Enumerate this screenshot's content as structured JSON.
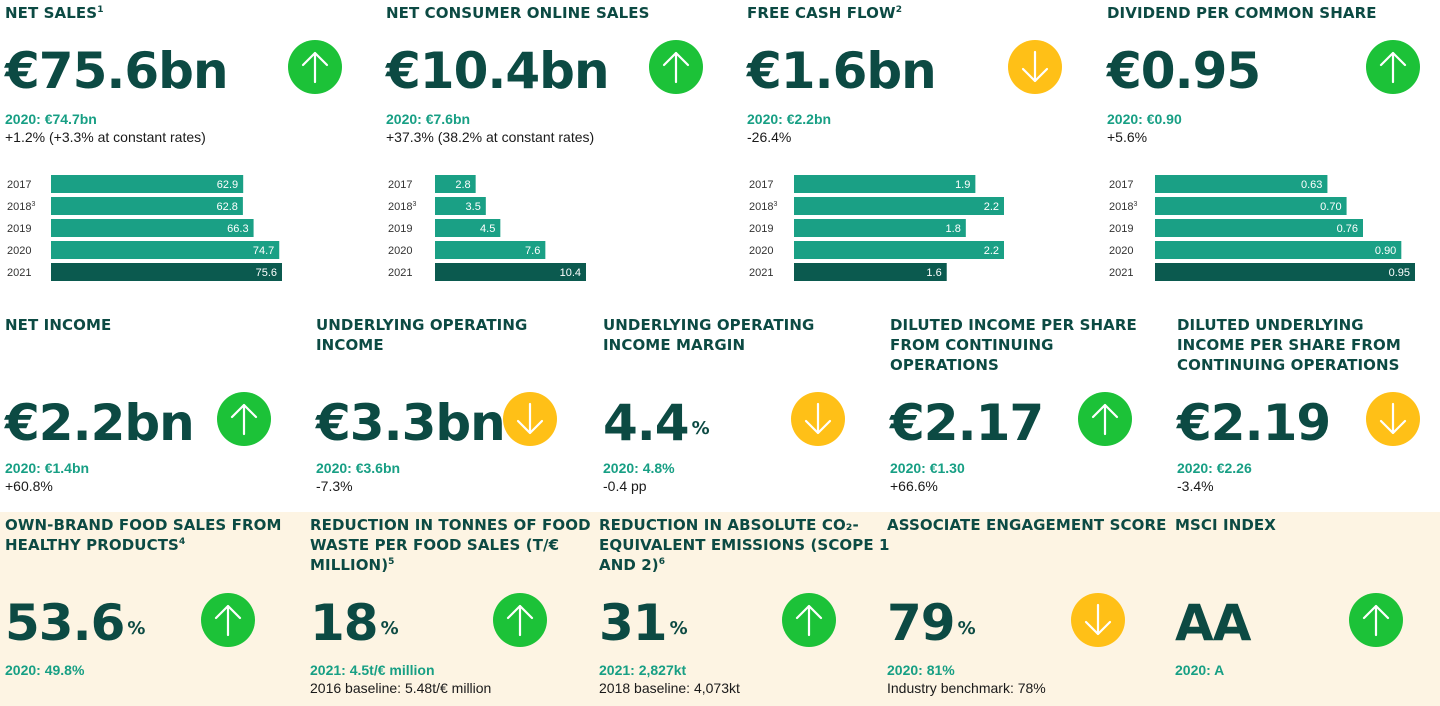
{
  "colors": {
    "title": "#0c4a43",
    "prior": "#179f84",
    "bar": "#1aa085",
    "bar_current": "#0b5a4f",
    "up": "#1cc238",
    "down": "#ffc017",
    "band": "#fdf4e3"
  },
  "row1": [
    {
      "title": "NET SALES",
      "note": "1",
      "value": "€75.6bn",
      "trend": "up",
      "prior": "2020: €74.7bn",
      "change": "+1.2% (+3.3% at constant rates)",
      "chart_data": {
        "type": "bar",
        "categories": [
          "2017",
          "2018",
          "2019",
          "2020",
          "2021"
        ],
        "category_notes": [
          "",
          "3",
          "",
          "",
          ""
        ],
        "values": [
          62.9,
          62.8,
          66.3,
          74.7,
          75.6
        ],
        "labels": [
          "62.9",
          "62.8",
          "66.3",
          "74.7",
          "75.6"
        ],
        "xlim": [
          0,
          75.6
        ]
      }
    },
    {
      "title": "NET CONSUMER ONLINE SALES",
      "note": "",
      "value": "€10.4bn",
      "trend": "up",
      "prior": "2020: €7.6bn",
      "change": "+37.3% (38.2% at constant rates)",
      "chart_data": {
        "type": "bar",
        "categories": [
          "2017",
          "2018",
          "2019",
          "2020",
          "2021"
        ],
        "category_notes": [
          "",
          "3",
          "",
          "",
          ""
        ],
        "values": [
          2.8,
          3.5,
          4.5,
          7.6,
          10.4
        ],
        "labels": [
          "2.8",
          "3.5",
          "4.5",
          "7.6",
          "10.4"
        ],
        "xlim": [
          0,
          10.4
        ]
      }
    },
    {
      "title": "FREE CASH FLOW",
      "note": "2",
      "value": "€1.6bn",
      "trend": "down",
      "prior": "2020: €2.2bn",
      "change": "-26.4%",
      "chart_data": {
        "type": "bar",
        "categories": [
          "2017",
          "2018",
          "2019",
          "2020",
          "2021"
        ],
        "category_notes": [
          "",
          "3",
          "",
          "",
          ""
        ],
        "values": [
          1.9,
          2.2,
          1.8,
          2.2,
          1.6
        ],
        "labels": [
          "1.9",
          "2.2",
          "1.8",
          "2.2",
          "1.6"
        ],
        "xlim": [
          0,
          2.2
        ]
      }
    },
    {
      "title": "DIVIDEND PER COMMON SHARE",
      "note": "",
      "value": "€0.95",
      "trend": "up",
      "prior": "2020: €0.90",
      "change": "+5.6%",
      "chart_data": {
        "type": "bar",
        "categories": [
          "2017",
          "2018",
          "2019",
          "2020",
          "2021"
        ],
        "category_notes": [
          "",
          "3",
          "",
          "",
          ""
        ],
        "values": [
          0.63,
          0.7,
          0.76,
          0.9,
          0.95
        ],
        "labels": [
          "0.63",
          "0.70",
          "0.76",
          "0.90",
          "0.95"
        ],
        "xlim": [
          0,
          0.95
        ]
      }
    }
  ],
  "row2": [
    {
      "title": [
        "NET INCOME"
      ],
      "note": "",
      "value": "€2.2bn",
      "unit": "",
      "trend": "up",
      "prior": "2020: €1.4bn",
      "change": "+60.8%"
    },
    {
      "title": [
        "UNDERLYING OPERATING",
        "INCOME"
      ],
      "note": "",
      "value": "€3.3bn",
      "unit": "",
      "trend": "down",
      "prior": "2020: €3.6bn",
      "change": "-7.3%"
    },
    {
      "title": [
        "UNDERLYING OPERATING",
        "INCOME MARGIN"
      ],
      "note": "",
      "value": "4.4",
      "unit": "%",
      "trend": "down",
      "prior": "2020: 4.8%",
      "change": "-0.4 pp"
    },
    {
      "title": [
        "DILUTED INCOME PER SHARE",
        "FROM CONTINUING",
        "OPERATIONS"
      ],
      "note": "",
      "value": "€2.17",
      "unit": "",
      "trend": "up",
      "prior": "2020: €1.30",
      "change": "+66.6%"
    },
    {
      "title": [
        "DILUTED UNDERLYING",
        "INCOME PER SHARE FROM",
        "CONTINUING OPERATIONS"
      ],
      "note": "",
      "value": "€2.19",
      "unit": "",
      "trend": "down",
      "prior": "2020: €2.26",
      "change": "-3.4%"
    }
  ],
  "row3": [
    {
      "title": [
        "OWN-BRAND FOOD SALES FROM",
        "HEALTHY PRODUCTS"
      ],
      "note": "4",
      "value": "53.6",
      "unit": "%",
      "trend": "up",
      "prior": "2020: 49.8%",
      "change": ""
    },
    {
      "title": [
        "REDUCTION IN TONNES OF FOOD",
        "WASTE PER FOOD SALES (T/€",
        "MILLION)"
      ],
      "note": "5",
      "value": "18",
      "unit": "%",
      "trend": "up",
      "prior": "2021: 4.5t/€ million",
      "change": "2016 baseline: 5.48t/€ million"
    },
    {
      "title": [
        "REDUCTION IN ABSOLUTE CO₂-",
        "EQUIVALENT EMISSIONS (SCOPE 1",
        "AND 2)"
      ],
      "note": "6",
      "value": "31",
      "unit": "%",
      "trend": "up",
      "prior": "2021: 2,827kt",
      "change": "2018 baseline: 4,073kt"
    },
    {
      "title": [
        "ASSOCIATE ENGAGEMENT SCORE"
      ],
      "note": "",
      "value": "79",
      "unit": "%",
      "trend": "down",
      "prior": "2020: 81%",
      "change": "Industry benchmark: 78%"
    },
    {
      "title": [
        "MSCI INDEX"
      ],
      "note": "",
      "value": "AA",
      "unit": "",
      "trend": "up",
      "prior": "2020: A",
      "change": ""
    }
  ]
}
